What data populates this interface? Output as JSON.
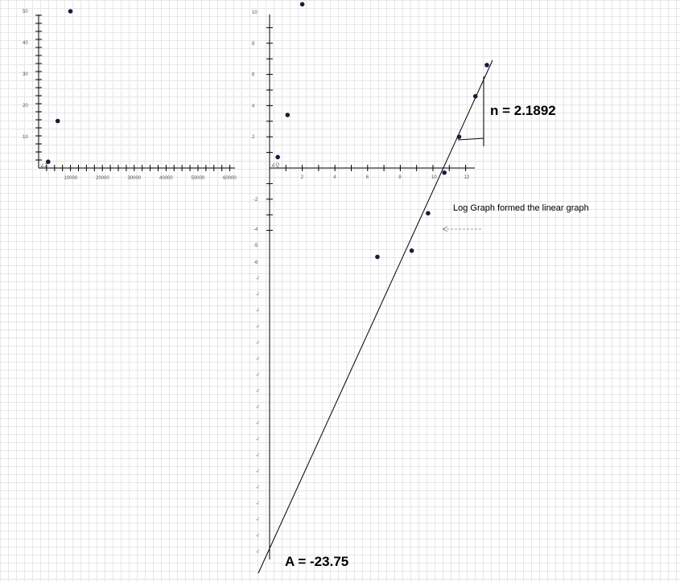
{
  "canvas": {
    "grid_color": "#e6e6e6",
    "background": "#ffffff",
    "axis_color": "#000000",
    "point_color": "#1a1a3a"
  },
  "left_graph": {
    "x_ticks": [
      "10000",
      "20000",
      "30000",
      "40000",
      "50000",
      "60000"
    ],
    "y_ticks": [
      "10",
      "20",
      "30",
      "40",
      "50"
    ],
    "points": [
      {
        "x": 3000,
        "y": 2
      },
      {
        "x": 6000,
        "y": 15
      },
      {
        "x": 10000,
        "y": 50
      }
    ]
  },
  "right_graph": {
    "x_ticks_top": [
      "2",
      "4",
      "6",
      "8",
      "10",
      "12"
    ],
    "y_ticks_pos": [
      "2",
      "4",
      "6",
      "8",
      "10"
    ],
    "y_ticks_neg": [
      "-2",
      "-4",
      "-5",
      "-6"
    ],
    "y_ticks_lower_count": 18,
    "y_ticks_lower_glyph": "-/",
    "points": [
      {
        "x": 0.5,
        "y": 0.7
      },
      {
        "x": 1.1,
        "y": 3.4
      },
      {
        "x": 2.0,
        "y": 10.5
      },
      {
        "x": 10.7,
        "y": -0.3
      },
      {
        "x": 9.7,
        "y": -2.9
      },
      {
        "x": 8.7,
        "y": -5.3
      },
      {
        "x": 6.6,
        "y": -5.7
      },
      {
        "x": 11.6,
        "y": 2.0
      },
      {
        "x": 12.6,
        "y": 4.6
      },
      {
        "x": 13.3,
        "y": 6.6
      }
    ]
  },
  "annotations": {
    "n_label": "n = 2.1892",
    "a_label": "A = -23.75",
    "note": "Log Graph formed the linear graph"
  }
}
